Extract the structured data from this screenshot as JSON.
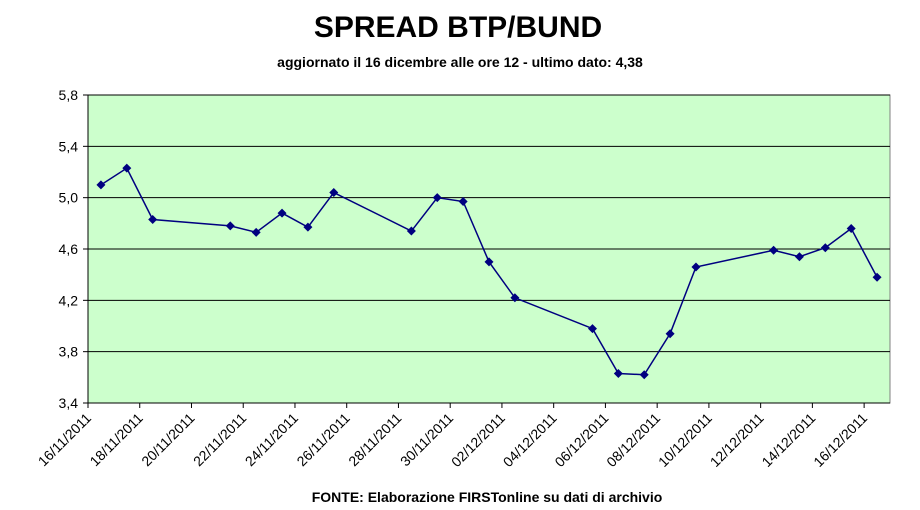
{
  "chart_data": {
    "type": "line",
    "title": "SPREAD BTP/BUND",
    "subtitle": "aggiornato il 16 dicembre alle ore 12 - ultimo dato: 4,38",
    "source": "FONTE: Elaborazione FIRSTonline su dati di archivio",
    "x": [
      "16/11/2011",
      "17/11/2011",
      "18/11/2011",
      "21/11/2011",
      "22/11/2011",
      "23/11/2011",
      "24/11/2011",
      "25/11/2011",
      "28/11/2011",
      "29/11/2011",
      "30/11/2011",
      "01/12/2011",
      "02/12/2011",
      "05/12/2011",
      "06/12/2011",
      "07/12/2011",
      "08/12/2011",
      "09/12/2011",
      "12/12/2011",
      "13/12/2011",
      "14/12/2011",
      "15/12/2011",
      "16/12/2011"
    ],
    "values": [
      5.1,
      5.23,
      4.83,
      4.78,
      4.73,
      4.88,
      4.77,
      5.04,
      4.74,
      5.0,
      4.97,
      4.5,
      4.22,
      3.98,
      3.63,
      3.62,
      3.94,
      4.46,
      4.59,
      4.54,
      4.61,
      4.76,
      4.38
    ],
    "color": "#000080",
    "xlim": [
      "16/11/2011",
      "16/12/2011"
    ],
    "xticks": [
      "16/11/2011",
      "18/11/2011",
      "20/11/2011",
      "22/11/2011",
      "24/11/2011",
      "26/11/2011",
      "28/11/2011",
      "30/11/2011",
      "02/12/2011",
      "04/12/2011",
      "06/12/2011",
      "08/12/2011",
      "10/12/2011",
      "12/12/2011",
      "14/12/2011",
      "16/12/2011"
    ],
    "ylim": [
      3.4,
      5.8
    ],
    "yticks": [
      {
        "value": 3.4,
        "label": "3,4"
      },
      {
        "value": 3.8,
        "label": "3,8"
      },
      {
        "value": 4.2,
        "label": "4,2"
      },
      {
        "value": 4.6,
        "label": "4,6"
      },
      {
        "value": 5.0,
        "label": "5,0"
      },
      {
        "value": 5.4,
        "label": "5,4"
      },
      {
        "value": 5.8,
        "label": "5,8"
      }
    ],
    "grid": true,
    "plot_background": "#ccffcc"
  }
}
